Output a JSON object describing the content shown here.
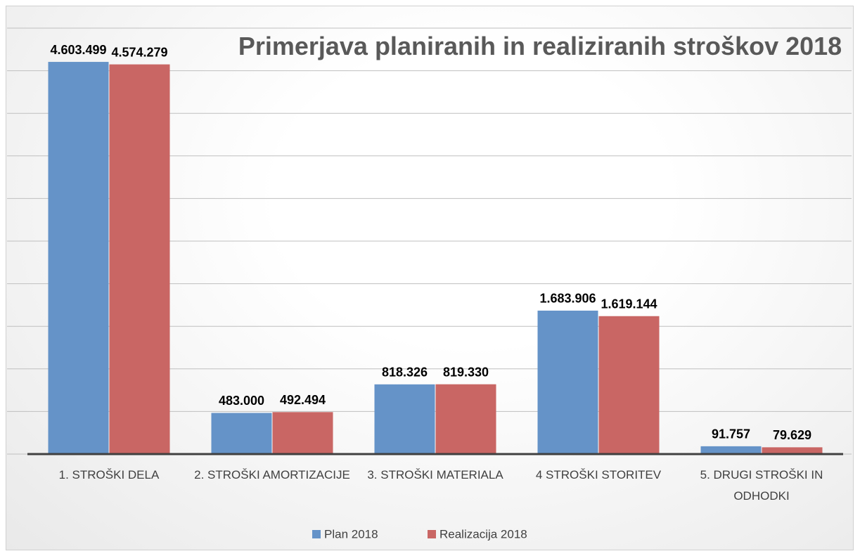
{
  "chart_data": {
    "type": "bar",
    "title": "Primerjava planiranih in realiziranih stroškov 2018",
    "categories": [
      "1. STROŠKI DELA",
      "2. STROŠKI AMORTIZACIJE",
      "3. STROŠKI MATERIALA",
      "4 STROŠKI STORITEV",
      "5. DRUGI STROŠKI IN ODHODKI"
    ],
    "series": [
      {
        "name": "Plan 2018",
        "color": "#6593c8",
        "values": [
          4603499,
          483000,
          818326,
          1683906,
          91757
        ],
        "value_labels": [
          "4.603.499",
          "483.000",
          "818.326",
          "1.683.906",
          "91.757"
        ]
      },
      {
        "name": "Realizacija 2018",
        "color": "#c96664",
        "values": [
          4574279,
          492494,
          819330,
          1619144,
          79629
        ],
        "value_labels": [
          "4.574.279",
          "492.494",
          "819.330",
          "1.619.144",
          "79.629"
        ]
      }
    ],
    "ylim": [
      0,
      5000000
    ],
    "yticks": [
      0,
      500000,
      1000000,
      1500000,
      2000000,
      2500000,
      3000000,
      3500000,
      4000000,
      4500000,
      5000000
    ],
    "grid": true,
    "legend": "bottom"
  }
}
